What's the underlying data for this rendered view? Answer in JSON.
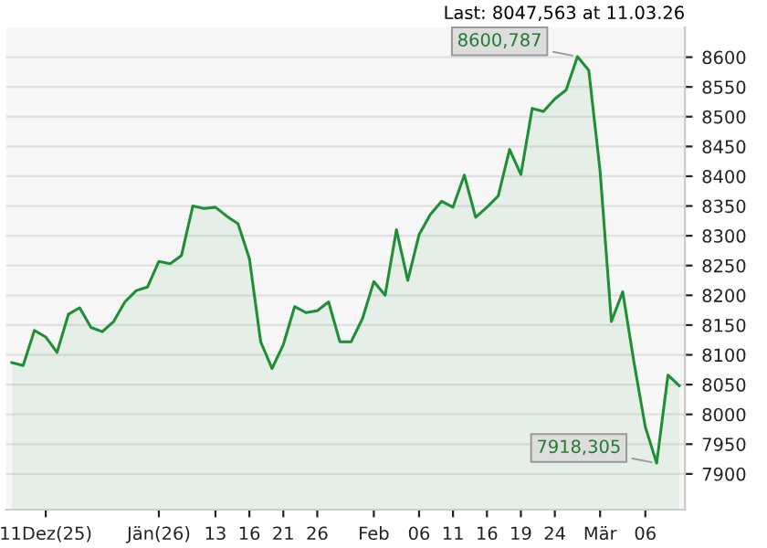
{
  "chart_data": {
    "type": "area",
    "categories": [
      null,
      null,
      null,
      "11Dez(25)",
      null,
      null,
      null,
      null,
      null,
      null,
      null,
      null,
      null,
      "Jän(26)",
      null,
      null,
      null,
      null,
      "13",
      null,
      null,
      "16",
      null,
      null,
      "21",
      null,
      null,
      "26",
      null,
      null,
      null,
      null,
      "Feb",
      null,
      null,
      null,
      "06",
      null,
      null,
      "11",
      null,
      null,
      "16",
      null,
      null,
      "19",
      null,
      null,
      "24",
      null,
      null,
      null,
      "Mär",
      null,
      null,
      null,
      "06",
      null,
      null,
      null
    ],
    "series": [
      {
        "color": "#1f8f35",
        "values": [
          8087,
          8082,
          8141,
          8130,
          8104,
          8168,
          8179,
          8146,
          8139,
          8156,
          8189,
          8208,
          8214,
          8257,
          8253,
          8267,
          8350,
          8346,
          8348,
          8333,
          8320,
          8262,
          8122,
          8077,
          8117,
          8181,
          8171,
          8174,
          8189,
          8122,
          8122,
          8161,
          8223,
          8200,
          8310,
          8225,
          8302,
          8336,
          8358,
          8348,
          8402,
          8331,
          8348,
          8367,
          8445,
          8403,
          8514,
          8509,
          8530,
          8545,
          8601,
          8578,
          8409,
          8156,
          8206,
          8087,
          7979,
          7918,
          8066,
          8048
        ]
      }
    ],
    "ylim": [
      7840,
      8650
    ],
    "yticks": [
      7900,
      7950,
      8000,
      8050,
      8100,
      8150,
      8200,
      8250,
      8300,
      8350,
      8400,
      8450,
      8500,
      8550,
      8600
    ],
    "grid": "y",
    "annotations": [
      "Last: 8047,563 at 11.03.26",
      "8600,787",
      "7918,305"
    ]
  }
}
